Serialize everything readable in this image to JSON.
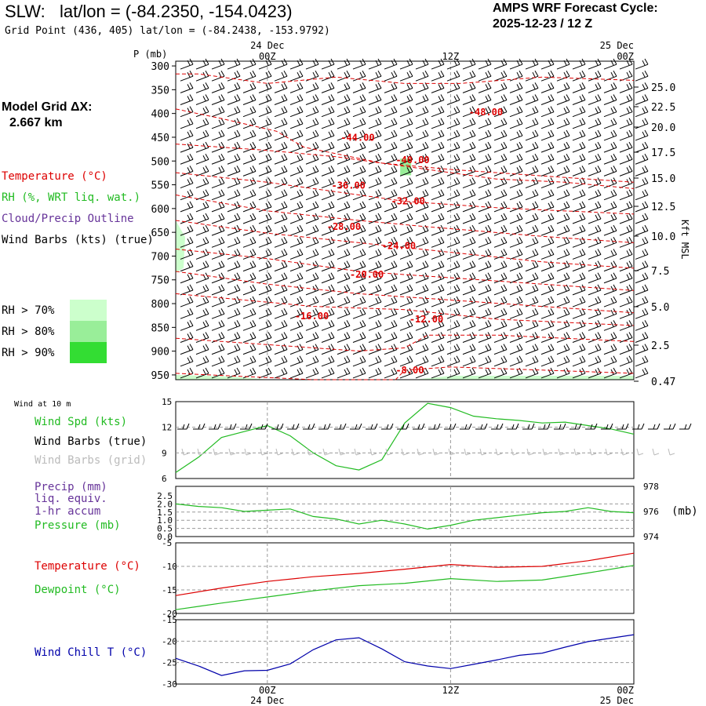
{
  "header": {
    "station": "SLW:",
    "latlon": "lat/lon = (-84.2350, -154.0423)",
    "grid_point": "Grid Point (436, 405) lat/lon = (-84.2438, -153.9792)",
    "forecast_title": "AMPS WRF Forecast Cycle:",
    "forecast_cycle": "2025-12-23 / 12  Z"
  },
  "left_panel": {
    "model_grid_label": "Model Grid ΔX:",
    "model_grid_value": "2.667 km",
    "legend": {
      "temperature": "Temperature (°C)",
      "rh": "RH (%, WRT liq. wat.)",
      "cloud": "Cloud/Precip Outline",
      "wind": "Wind Barbs (kts) (true)"
    },
    "rh_swatches": [
      {
        "label": "RH > 70%",
        "color": "#ccffcc"
      },
      {
        "label": "RH > 80%",
        "color": "#99ee99"
      },
      {
        "label": "RH > 90%",
        "color": "#33dd33"
      }
    ]
  },
  "colors": {
    "temperature": "#dd0000",
    "rh": "#22bb22",
    "cloud": "#663399",
    "wind_chill": "#0000aa",
    "grid": "#999999"
  },
  "chart_data": [
    {
      "type": "line",
      "name": "upper-air-cross-section",
      "ylabel": "P (mb)",
      "y_ticks": [
        "300",
        "350",
        "400",
        "450",
        "500",
        "550",
        "600",
        "650",
        "700",
        "750",
        "800",
        "850",
        "900",
        "950"
      ],
      "right_label": "Kft MSL",
      "right_ticks": [
        "25.0",
        "22.5",
        "20.0",
        "17.5",
        "15.0",
        "12.5",
        "10.0",
        "7.5",
        "5.0",
        "2.5",
        "0.47"
      ],
      "top_times": [
        "00Z",
        "12Z",
        "00Z"
      ],
      "top_dates": [
        "24 Dec",
        "25 Dec"
      ],
      "isotherm_labels": [
        "-48.00",
        "-44.00",
        "-40.00",
        "-36.00",
        "-32.00",
        "-28.00",
        "-24.00",
        "-20.00",
        "-16.00",
        "-12.00",
        "-8.00"
      ]
    },
    {
      "type": "line",
      "name": "surface-wind",
      "title": "Wind at 10 m",
      "series_labels": [
        "Wind Spd (kts)",
        "Wind Barbs (true)",
        "Wind Barbs (grid)"
      ],
      "y_ticks": [
        "15",
        "12",
        "9",
        "6"
      ],
      "ylim": [
        6,
        15
      ],
      "x_hours": [
        0,
        3,
        6,
        9,
        12,
        15,
        18,
        21,
        24,
        27,
        30,
        33,
        36,
        39,
        42,
        45,
        48,
        51,
        54,
        57,
        60
      ],
      "values": [
        6.7,
        8.5,
        10.8,
        11.5,
        12.2,
        11.0,
        9.0,
        7.5,
        7.0,
        8.2,
        12.5,
        14.8,
        14.3,
        13.3,
        13.0,
        12.8,
        12.5,
        12.6,
        12.2,
        11.8,
        11.2
      ]
    },
    {
      "type": "line",
      "name": "precip-pressure",
      "series_labels": [
        "Precip (mm)",
        "liq. equiv.",
        "1-hr accum",
        "Pressure (mb)"
      ],
      "left_ticks": [
        "2.5",
        "2.0",
        "1.5",
        "1.0",
        "0.5",
        "0.0"
      ],
      "right_ticks": [
        "978",
        "976",
        "974"
      ],
      "right_unit": "(mb)",
      "ylim": [
        974,
        978
      ],
      "x_hours": [
        0,
        3,
        6,
        9,
        12,
        15,
        18,
        21,
        24,
        27,
        30,
        33,
        36,
        39,
        42,
        45,
        48,
        51,
        54,
        57,
        60
      ],
      "values": [
        976.6,
        976.4,
        976.3,
        976.0,
        976.1,
        976.2,
        975.6,
        975.4,
        975.0,
        975.3,
        975.0,
        974.6,
        974.9,
        975.3,
        975.5,
        975.7,
        975.9,
        976.0,
        976.3,
        976.0,
        975.9
      ]
    },
    {
      "type": "line",
      "name": "temperature-dewpoint",
      "series_labels": [
        "Temperature (°C)",
        "Dewpoint (°C)"
      ],
      "y_ticks": [
        "-5",
        "-10",
        "-15",
        "-20"
      ],
      "ylim": [
        -20,
        -5
      ],
      "x_hours": [
        0,
        6,
        12,
        18,
        24,
        30,
        36,
        42,
        48,
        54,
        60
      ],
      "series": [
        {
          "name": "Temperature",
          "values": [
            -16.2,
            -14.6,
            -13.2,
            -12.2,
            -11.5,
            -10.6,
            -9.6,
            -10.2,
            -10.0,
            -8.8,
            -7.2
          ]
        },
        {
          "name": "Dewpoint",
          "values": [
            -19.2,
            -17.8,
            -16.5,
            -15.2,
            -14.1,
            -13.6,
            -12.6,
            -13.2,
            -12.9,
            -11.4,
            -9.8
          ]
        }
      ]
    },
    {
      "type": "line",
      "name": "wind-chill",
      "series_labels": [
        "Wind Chill T (°C)"
      ],
      "y_ticks": [
        "-15",
        "-20",
        "-25",
        "-30"
      ],
      "ylim": [
        -30,
        -15
      ],
      "x_hours": [
        0,
        3,
        6,
        9,
        12,
        15,
        18,
        21,
        24,
        27,
        30,
        33,
        36,
        39,
        42,
        45,
        48,
        51,
        54,
        57,
        60
      ],
      "values": [
        -24.0,
        -25.8,
        -28.0,
        -26.9,
        -26.8,
        -25.3,
        -22.0,
        -19.7,
        -19.2,
        -21.8,
        -24.8,
        -25.8,
        -26.4,
        -25.4,
        -24.4,
        -23.3,
        -22.8,
        -21.4,
        -20.1,
        -19.3,
        -18.5
      ]
    },
    {
      "type": "table",
      "name": "bottom-time-axis",
      "times": [
        "00Z",
        "12Z",
        "00Z"
      ],
      "dates": [
        "24 Dec",
        "25 Dec"
      ]
    }
  ]
}
